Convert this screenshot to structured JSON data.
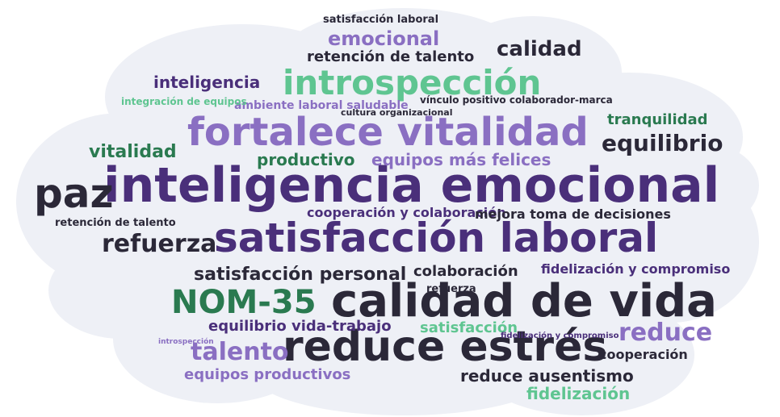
{
  "cloud": {
    "background_color": "#eef0f6",
    "palette": [
      "#2b2838",
      "#4a2f7a",
      "#8a6fc2",
      "#5fc591",
      "#2a7a50"
    ],
    "words": [
      "inteligencia emocional",
      "satisfacción laboral",
      "fortalece vitalidad",
      "introspección",
      "calidad de vida",
      "reduce estrés",
      "paz",
      "NOM-35",
      "refuerza",
      "equilibrio",
      "reduce",
      "talento",
      "calidad",
      "emocional",
      "inteligencia",
      "vitalidad",
      "retención de talento",
      "satisfacción personal",
      "equipos más felices",
      "productivo",
      "tranquilidad",
      "cooperación y colaboración",
      "mejora toma de decisiones",
      "colaboración",
      "fidelización y compromiso",
      "equilibrio vida-trabajo",
      "equipos productivos",
      "reduce ausentismo",
      "satisfacción",
      "cooperación",
      "fidelización",
      "ambiente laboral saludable",
      "integración de equipos",
      "cultura organizacional",
      "vínculo positivo colaborador-marca",
      "satisfacción laboral",
      "retención de talento",
      "fidelización y compromiso",
      "introspección",
      "refuerza"
    ]
  }
}
